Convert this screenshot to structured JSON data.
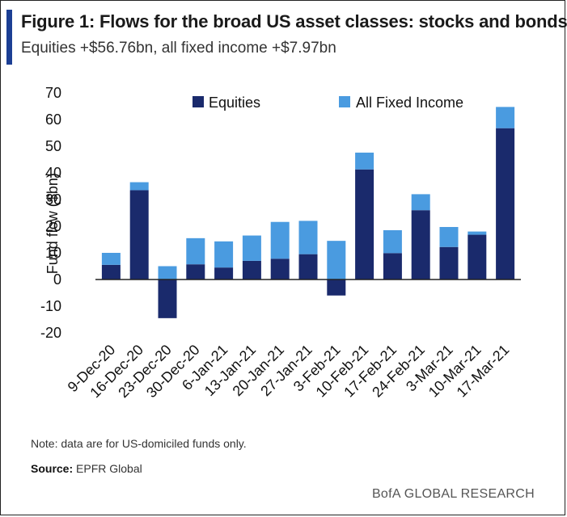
{
  "header": {
    "title": "Figure 1: Flows for the broad US asset classes: stocks and bonds",
    "subtitle": "Equities +$56.76bn, all fixed income +$7.97bn"
  },
  "footer": {
    "note": "Note: data are for US-domiciled funds only.",
    "source_label": "Source:",
    "source_value": "EPFR Global",
    "brand": "BofA GLOBAL RESEARCH"
  },
  "colors": {
    "equities": "#1a2a6c",
    "fixed_income": "#4a9be0"
  },
  "chart_data": {
    "type": "bar",
    "stacked": true,
    "categories": [
      "9-Dec-20",
      "16-Dec-20",
      "23-Dec-20",
      "30-Dec-20",
      "6-Jan-21",
      "13-Jan-21",
      "20-Jan-21",
      "27-Jan-21",
      "3-Feb-21",
      "10-Feb-21",
      "17-Feb-21",
      "24-Feb-21",
      "3-Mar-21",
      "10-Mar-21",
      "17-Mar-21"
    ],
    "series": [
      {
        "name": "Equities",
        "values": [
          5.5,
          33.5,
          -14.5,
          5.7,
          4.5,
          7.0,
          7.8,
          9.5,
          -6.0,
          41.3,
          9.9,
          26.0,
          12.2,
          16.8,
          56.76
        ]
      },
      {
        "name": "All Fixed Income",
        "values": [
          4.5,
          3.0,
          5.0,
          9.8,
          9.8,
          9.5,
          13.8,
          12.5,
          14.5,
          6.3,
          8.6,
          6.0,
          7.5,
          1.2,
          7.97
        ]
      }
    ],
    "ylabel": "Fund flow  ($bn)",
    "ylim": [
      -20,
      70
    ],
    "yticks": [
      70,
      60,
      50,
      40,
      30,
      20,
      10,
      0,
      -10,
      -20
    ],
    "legend": "top",
    "grid": false
  }
}
